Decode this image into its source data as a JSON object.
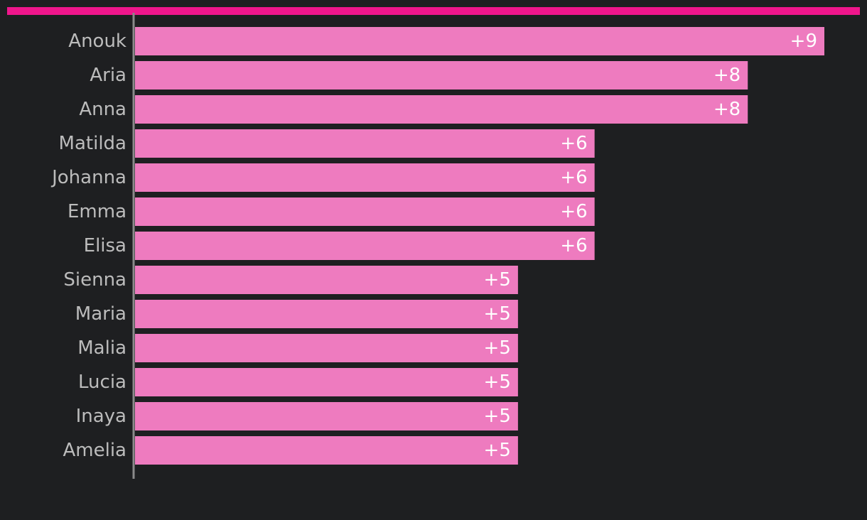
{
  "colors": {
    "background": "#1e1f21",
    "accent_bar": "#f0168c",
    "bar": "#ee7bbf",
    "axis": "#8a8a8a",
    "category_text": "#bcbcbc",
    "value_text": "#ffffff"
  },
  "chart_data": {
    "type": "bar",
    "orientation": "horizontal",
    "categories": [
      "Anouk",
      "Aria",
      "Anna",
      "Matilda",
      "Johanna",
      "Emma",
      "Elisa",
      "Sienna",
      "Maria",
      "Malia",
      "Lucia",
      "Inaya",
      "Amelia"
    ],
    "values": [
      9,
      8,
      8,
      6,
      6,
      6,
      6,
      5,
      5,
      5,
      5,
      5,
      5
    ],
    "value_labels": [
      "+9",
      "+8",
      "+8",
      "+6",
      "+6",
      "+6",
      "+6",
      "+5",
      "+5",
      "+5",
      "+5",
      "+5",
      "+5"
    ],
    "title": "",
    "xlabel": "",
    "ylabel": "",
    "xlim": [
      0,
      9
    ],
    "grid": false,
    "legend": "none"
  }
}
